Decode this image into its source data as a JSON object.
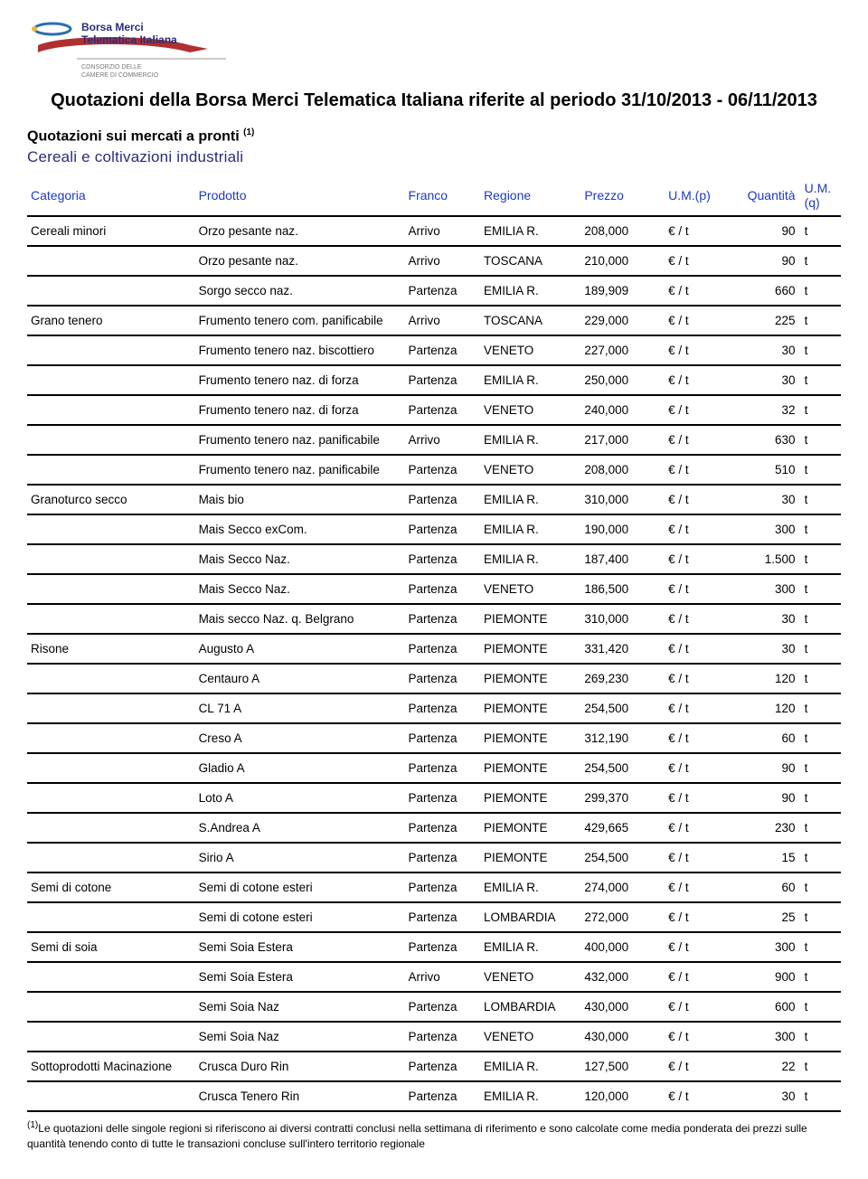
{
  "logo": {
    "line1": "Borsa Merci",
    "line2": "Telematica Italiana",
    "sub1": "CONSORZIO DELLE",
    "sub2": "CAMERE DI COMMERCIO"
  },
  "title": "Quotazioni della Borsa Merci Telematica Italiana riferite al periodo 31/10/2013 - 06/11/2013",
  "subtitle": "Quotazioni sui mercati a pronti ",
  "subtitle_note": "(1)",
  "category_heading": "Cereali e coltivazioni industriali",
  "columns": {
    "categoria": "Categoria",
    "prodotto": "Prodotto",
    "franco": "Franco",
    "regione": "Regione",
    "prezzo": "Prezzo",
    "ump": "U.M.(p)",
    "quantita": "Quantità",
    "umq": "U.M.(q)"
  },
  "rows": [
    {
      "categoria": "Cereali minori",
      "prodotto": "Orzo pesante naz.",
      "franco": "Arrivo",
      "regione": "EMILIA R.",
      "prezzo": "208,000",
      "ump": "€ / t",
      "quantita": "90",
      "umq": "t"
    },
    {
      "categoria": "",
      "prodotto": "Orzo pesante naz.",
      "franco": "Arrivo",
      "regione": "TOSCANA",
      "prezzo": "210,000",
      "ump": "€ / t",
      "quantita": "90",
      "umq": "t"
    },
    {
      "categoria": "",
      "prodotto": "Sorgo secco naz.",
      "franco": "Partenza",
      "regione": "EMILIA R.",
      "prezzo": "189,909",
      "ump": "€ / t",
      "quantita": "660",
      "umq": "t"
    },
    {
      "categoria": "Grano tenero",
      "prodotto": "Frumento tenero com. panificabile",
      "franco": "Arrivo",
      "regione": "TOSCANA",
      "prezzo": "229,000",
      "ump": "€ / t",
      "quantita": "225",
      "umq": "t"
    },
    {
      "categoria": "",
      "prodotto": "Frumento tenero naz. biscottiero",
      "franco": "Partenza",
      "regione": "VENETO",
      "prezzo": "227,000",
      "ump": "€ / t",
      "quantita": "30",
      "umq": "t"
    },
    {
      "categoria": "",
      "prodotto": "Frumento tenero naz. di forza",
      "franco": "Partenza",
      "regione": "EMILIA R.",
      "prezzo": "250,000",
      "ump": "€ / t",
      "quantita": "30",
      "umq": "t"
    },
    {
      "categoria": "",
      "prodotto": "Frumento tenero naz. di forza",
      "franco": "Partenza",
      "regione": "VENETO",
      "prezzo": "240,000",
      "ump": "€ / t",
      "quantita": "32",
      "umq": "t"
    },
    {
      "categoria": "",
      "prodotto": "Frumento tenero naz. panificabile",
      "franco": "Arrivo",
      "regione": "EMILIA R.",
      "prezzo": "217,000",
      "ump": "€ / t",
      "quantita": "630",
      "umq": "t"
    },
    {
      "categoria": "",
      "prodotto": "Frumento tenero naz. panificabile",
      "franco": "Partenza",
      "regione": "VENETO",
      "prezzo": "208,000",
      "ump": "€ / t",
      "quantita": "510",
      "umq": "t"
    },
    {
      "categoria": "Granoturco secco",
      "prodotto": "Mais bio",
      "franco": "Partenza",
      "regione": "EMILIA R.",
      "prezzo": "310,000",
      "ump": "€ / t",
      "quantita": "30",
      "umq": "t"
    },
    {
      "categoria": "",
      "prodotto": "Mais Secco exCom.",
      "franco": "Partenza",
      "regione": "EMILIA R.",
      "prezzo": "190,000",
      "ump": "€ / t",
      "quantita": "300",
      "umq": "t"
    },
    {
      "categoria": "",
      "prodotto": "Mais Secco Naz.",
      "franco": "Partenza",
      "regione": "EMILIA R.",
      "prezzo": "187,400",
      "ump": "€ / t",
      "quantita": "1.500",
      "umq": "t"
    },
    {
      "categoria": "",
      "prodotto": "Mais Secco Naz.",
      "franco": "Partenza",
      "regione": "VENETO",
      "prezzo": "186,500",
      "ump": "€ / t",
      "quantita": "300",
      "umq": "t"
    },
    {
      "categoria": "",
      "prodotto": "Mais secco Naz. q. Belgrano",
      "franco": "Partenza",
      "regione": "PIEMONTE",
      "prezzo": "310,000",
      "ump": "€ / t",
      "quantita": "30",
      "umq": "t"
    },
    {
      "categoria": "Risone",
      "prodotto": "Augusto A",
      "franco": "Partenza",
      "regione": "PIEMONTE",
      "prezzo": "331,420",
      "ump": "€ / t",
      "quantita": "30",
      "umq": "t"
    },
    {
      "categoria": "",
      "prodotto": "Centauro A",
      "franco": "Partenza",
      "regione": "PIEMONTE",
      "prezzo": "269,230",
      "ump": "€ / t",
      "quantita": "120",
      "umq": "t"
    },
    {
      "categoria": "",
      "prodotto": "CL 71 A",
      "franco": "Partenza",
      "regione": "PIEMONTE",
      "prezzo": "254,500",
      "ump": "€ / t",
      "quantita": "120",
      "umq": "t"
    },
    {
      "categoria": "",
      "prodotto": "Creso A",
      "franco": "Partenza",
      "regione": "PIEMONTE",
      "prezzo": "312,190",
      "ump": "€ / t",
      "quantita": "60",
      "umq": "t"
    },
    {
      "categoria": "",
      "prodotto": "Gladio A",
      "franco": "Partenza",
      "regione": "PIEMONTE",
      "prezzo": "254,500",
      "ump": "€ / t",
      "quantita": "90",
      "umq": "t"
    },
    {
      "categoria": "",
      "prodotto": "Loto A",
      "franco": "Partenza",
      "regione": "PIEMONTE",
      "prezzo": "299,370",
      "ump": "€ / t",
      "quantita": "90",
      "umq": "t"
    },
    {
      "categoria": "",
      "prodotto": "S.Andrea A",
      "franco": "Partenza",
      "regione": "PIEMONTE",
      "prezzo": "429,665",
      "ump": "€ / t",
      "quantita": "230",
      "umq": "t"
    },
    {
      "categoria": "",
      "prodotto": "Sirio A",
      "franco": "Partenza",
      "regione": "PIEMONTE",
      "prezzo": "254,500",
      "ump": "€ / t",
      "quantita": "15",
      "umq": "t"
    },
    {
      "categoria": "Semi di cotone",
      "prodotto": "Semi di cotone esteri",
      "franco": "Partenza",
      "regione": "EMILIA R.",
      "prezzo": "274,000",
      "ump": "€ / t",
      "quantita": "60",
      "umq": "t"
    },
    {
      "categoria": "",
      "prodotto": "Semi di cotone esteri",
      "franco": "Partenza",
      "regione": "LOMBARDIA",
      "prezzo": "272,000",
      "ump": "€ / t",
      "quantita": "25",
      "umq": "t"
    },
    {
      "categoria": "Semi di soia",
      "prodotto": "Semi Soia Estera",
      "franco": "Partenza",
      "regione": "EMILIA R.",
      "prezzo": "400,000",
      "ump": "€ / t",
      "quantita": "300",
      "umq": "t"
    },
    {
      "categoria": "",
      "prodotto": "Semi Soia Estera",
      "franco": "Arrivo",
      "regione": "VENETO",
      "prezzo": "432,000",
      "ump": "€ / t",
      "quantita": "900",
      "umq": "t"
    },
    {
      "categoria": "",
      "prodotto": "Semi Soia Naz",
      "franco": "Partenza",
      "regione": "LOMBARDIA",
      "prezzo": "430,000",
      "ump": "€ / t",
      "quantita": "600",
      "umq": "t"
    },
    {
      "categoria": "",
      "prodotto": "Semi Soia Naz",
      "franco": "Partenza",
      "regione": "VENETO",
      "prezzo": "430,000",
      "ump": "€ / t",
      "quantita": "300",
      "umq": "t"
    },
    {
      "categoria": "Sottoprodotti Macinazione",
      "prodotto": "Crusca Duro Rin",
      "franco": "Partenza",
      "regione": "EMILIA R.",
      "prezzo": "127,500",
      "ump": "€ / t",
      "quantita": "22",
      "umq": "t"
    },
    {
      "categoria": "",
      "prodotto": "Crusca Tenero Rin",
      "franco": "Partenza",
      "regione": "EMILIA R.",
      "prezzo": "120,000",
      "ump": "€ / t",
      "quantita": "30",
      "umq": "t"
    }
  ],
  "footnote_marker": "(1)",
  "footnote": "Le quotazioni delle singole regioni si riferiscono ai diversi contratti conclusi nella settimana di riferimento e sono calcolate come media ponderata dei prezzi sulle quantità tenendo conto di tutte le transazioni concluse sull'intero territorio regionale"
}
